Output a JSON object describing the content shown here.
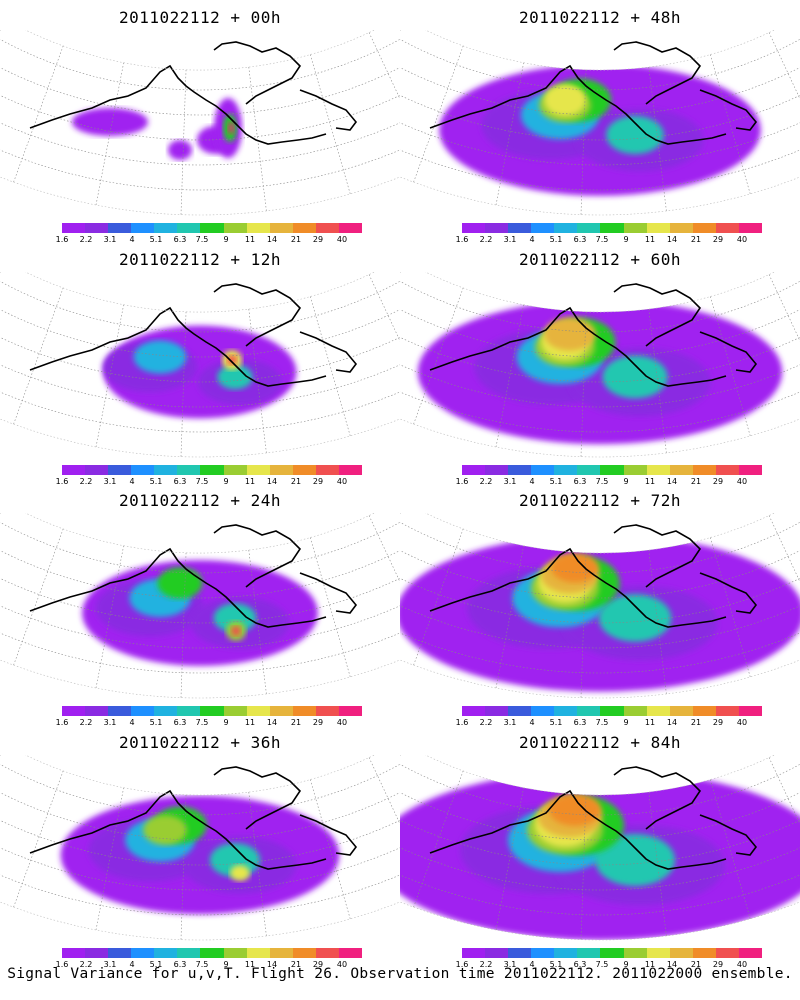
{
  "caption": "Signal Variance for u,v,T. Flight 26. Observation time 2011022112. 2011022000 ensemble.",
  "panels": [
    {
      "title": "2011022112 + 00h",
      "lead_hours": 0
    },
    {
      "title": "2011022112 + 48h",
      "lead_hours": 48
    },
    {
      "title": "2011022112 + 12h",
      "lead_hours": 12
    },
    {
      "title": "2011022112 + 60h",
      "lead_hours": 60
    },
    {
      "title": "2011022112 + 24h",
      "lead_hours": 24
    },
    {
      "title": "2011022112 + 72h",
      "lead_hours": 72
    },
    {
      "title": "2011022112 + 36h",
      "lead_hours": 36
    },
    {
      "title": "2011022112 + 84h",
      "lead_hours": 84
    }
  ],
  "colorbar": {
    "tick_labels": [
      "1.6",
      "2.2",
      "3.1",
      "4",
      "5.1",
      "6.3",
      "7.5",
      "9",
      "11",
      "14",
      "21",
      "29",
      "40"
    ],
    "colors": [
      "#a020f0",
      "#8a2be2",
      "#3a5bdc",
      "#1e90ff",
      "#20b2e0",
      "#21c7b0",
      "#22cc22",
      "#9acd32",
      "#e6e64c",
      "#e6b43c",
      "#f08c28",
      "#f05050",
      "#f0207f"
    ]
  }
}
